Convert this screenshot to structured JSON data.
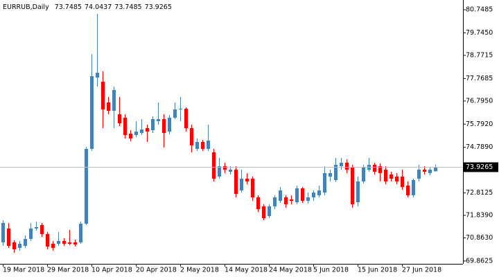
{
  "chart_data": {
    "type": "candlestick",
    "title": "EURRUB,Daily",
    "categories": [
      "19 Mar 2018",
      null,
      null,
      null,
      null,
      null,
      null,
      null,
      "29 Mar 2018",
      null,
      null,
      null,
      null,
      null,
      null,
      null,
      "10 Apr 2018",
      null,
      null,
      null,
      null,
      null,
      null,
      null,
      "20 Apr 2018",
      null,
      null,
      null,
      null,
      null,
      null,
      null,
      "2 May 2018",
      null,
      null,
      null,
      null,
      null,
      null,
      null,
      "14 May 2018",
      null,
      null,
      null,
      null,
      null,
      null,
      null,
      "24 May 2018",
      null,
      null,
      null,
      null,
      null,
      null,
      null,
      "5 Jun 2018",
      null,
      null,
      null,
      null,
      null,
      null,
      null,
      "15 Jun 2018",
      null,
      null,
      null,
      null,
      null,
      null,
      null,
      "27 Jun 2018",
      null,
      null,
      null,
      null,
      null,
      null
    ],
    "open": [
      70.67,
      71.27,
      70.67,
      70.43,
      70.52,
      70.82,
      71.27,
      71.42,
      71.03,
      70.61,
      70.61,
      70.73,
      70.67,
      70.67,
      70.67,
      71.48,
      74.72,
      77.81,
      77.63,
      76.73,
      76.37,
      76.22,
      76.07,
      75.38,
      75.32,
      75.41,
      75.62,
      75.53,
      75.92,
      76.01,
      75.47,
      76.07,
      76.43,
      76.46,
      75.62,
      74.72,
      75.02,
      74.72,
      74.57,
      73.52,
      73.97,
      73.73,
      73.82,
      72.92,
      73.43,
      73.43,
      72.62,
      72.23,
      71.81,
      72.23,
      72.47,
      72.62,
      72.53,
      72.41,
      73.01,
      72.47,
      72.62,
      72.71,
      72.83,
      73.52,
      73.37,
      73.97,
      74.12,
      73.91,
      72.41,
      73.31,
      73.82,
      74.03,
      73.97,
      73.82,
      73.61,
      73.52,
      73.52,
      73.13,
      72.71,
      73.43,
      73.82,
      73.67,
      73.7485
    ],
    "high": [
      71.63,
      71.51,
      70.76,
      70.73,
      70.97,
      71.51,
      71.57,
      71.51,
      71.12,
      70.73,
      71.12,
      70.85,
      71.21,
      70.79,
      71.57,
      74.81,
      78.83,
      80.57,
      78.08,
      76.97,
      77.42,
      76.97,
      76.22,
      75.53,
      75.92,
      76.01,
      75.77,
      76.13,
      76.73,
      76.22,
      76.19,
      76.73,
      76.97,
      76.52,
      75.77,
      75.17,
      75.11,
      75.77,
      74.72,
      74.33,
      74.12,
      73.97,
      73.97,
      73.82,
      73.67,
      73.52,
      72.71,
      72.32,
      72.32,
      72.71,
      73.07,
      72.71,
      72.71,
      73.13,
      73.07,
      72.83,
      72.92,
      73.13,
      73.97,
      73.82,
      74.33,
      74.33,
      74.27,
      74.03,
      73.52,
      74.03,
      74.33,
      74.12,
      74.09,
      73.97,
      73.73,
      73.67,
      73.82,
      73.31,
      73.43,
      74.03,
      73.97,
      73.91,
      74.0437
    ],
    "low": [
      70.52,
      70.43,
      70.22,
      70.31,
      70.43,
      70.73,
      71.18,
      70.91,
      70.37,
      70.31,
      70.52,
      70.52,
      70.55,
      70.49,
      70.61,
      71.42,
      74.63,
      77.42,
      75.62,
      76.22,
      75.62,
      75.71,
      75.17,
      75.05,
      75.23,
      75.32,
      75.02,
      75.41,
      75.77,
      74.78,
      75.35,
      76.01,
      75.92,
      75.47,
      74.57,
      74.63,
      74.63,
      74.63,
      73.31,
      73.43,
      73.67,
      73.61,
      72.62,
      72.83,
      73.19,
      72.47,
      71.99,
      71.63,
      71.72,
      72.11,
      72.38,
      72.17,
      72.32,
      72.32,
      72.38,
      72.35,
      72.47,
      72.62,
      72.71,
      73.31,
      73.28,
      73.82,
      73.67,
      72.17,
      72.23,
      73.22,
      73.73,
      73.61,
      73.31,
      73.19,
      73.31,
      73.19,
      72.95,
      72.62,
      72.62,
      73.31,
      73.61,
      73.58,
      73.7485
    ],
    "close": [
      71.51,
      70.52,
      70.37,
      70.61,
      70.82,
      71.27,
      71.33,
      71.03,
      70.49,
      70.43,
      70.73,
      70.61,
      70.61,
      70.58,
      71.48,
      74.72,
      77.87,
      78.02,
      76.43,
      76.37,
      77.27,
      75.83,
      75.32,
      75.17,
      75.47,
      75.56,
      75.47,
      76.01,
      76.01,
      75.41,
      76.07,
      76.43,
      76.46,
      75.62,
      74.87,
      75.02,
      74.72,
      75.08,
      73.43,
      73.97,
      73.82,
      73.82,
      72.77,
      73.43,
      73.31,
      72.62,
      72.11,
      71.72,
      72.23,
      72.62,
      72.92,
      72.32,
      72.47,
      73.01,
      72.47,
      72.62,
      72.83,
      72.92,
      73.67,
      73.67,
      74.03,
      74.12,
      73.82,
      72.32,
      73.31,
      73.91,
      74.03,
      73.73,
      73.67,
      73.31,
      73.43,
      73.31,
      73.07,
      72.71,
      73.37,
      73.82,
      73.73,
      73.82,
      73.9265
    ],
    "up_color": "#4682b4",
    "down_color": "#ff0000",
    "ylim": [
      69.74,
      81.17
    ],
    "yticks": [
      80.7485,
      {
        "value": 79.745,
        "label": "79.7450"
      },
      78.7715,
      77.7685,
      {
        "value": 76.795,
        "label": "76.7950"
      },
      {
        "value": 75.792,
        "label": "75.7920"
      },
      {
        "value": 74.789,
        "label": "74.7890"
      },
      72.8125,
      {
        "value": 71.839,
        "label": "71.8390"
      },
      {
        "value": 70.863,
        "label": "70.8630"
      },
      69.8625
    ]
  }
}
